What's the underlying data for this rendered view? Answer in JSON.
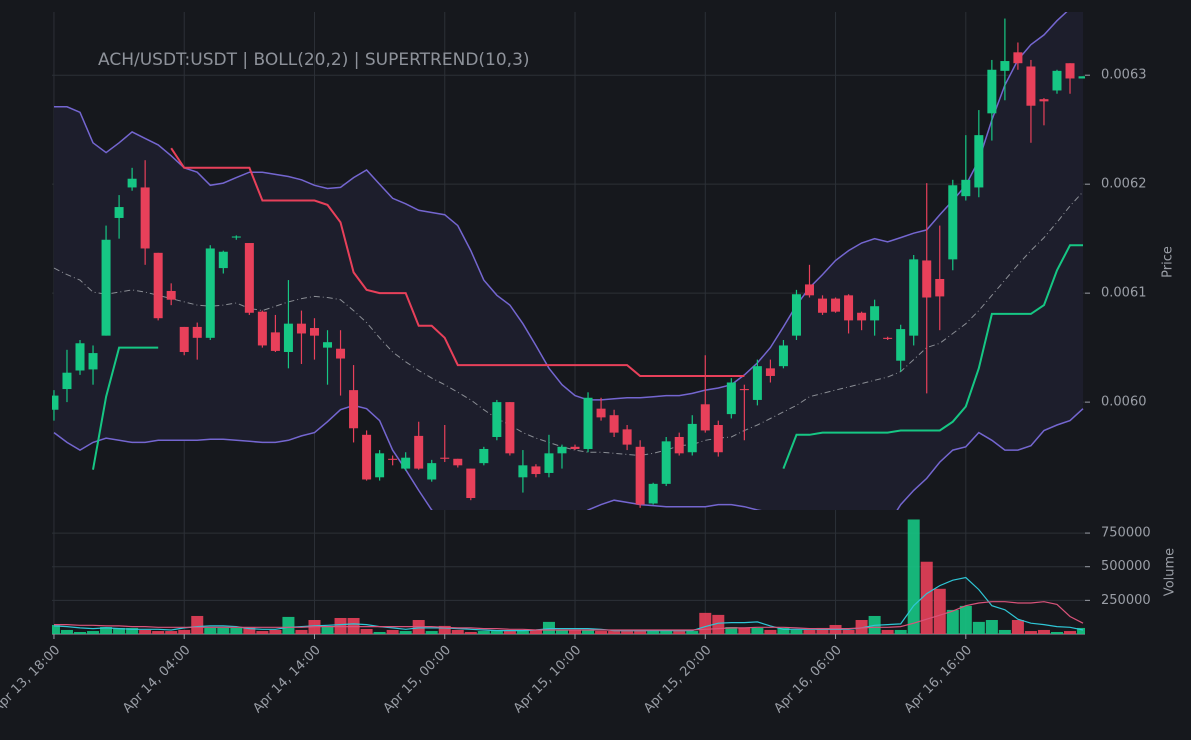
{
  "chart_data": {
    "type": "candlestick",
    "title": "ACH/USDT:USDT | BOLL(20,2) | SUPERTREND(10,3)",
    "y_label": "Price",
    "up_color": "#16c784",
    "down_color": "#e8405a",
    "grid": true,
    "xlim": [
      -0.15,
      79.15
    ],
    "xticks": [
      {
        "value": 0,
        "label": "Apr 13, 18:00"
      },
      {
        "value": 10,
        "label": "Apr 14, 04:00"
      },
      {
        "value": 20,
        "label": "Apr 14, 14:00"
      },
      {
        "value": 30,
        "label": "Apr 15, 00:00"
      },
      {
        "value": 40,
        "label": "Apr 15, 10:00"
      },
      {
        "value": 50,
        "label": "Apr 15, 20:00"
      },
      {
        "value": 60,
        "label": "Apr 16, 06:00"
      },
      {
        "value": 70,
        "label": "Apr 16, 16:00"
      }
    ],
    "ylim": [
      0.005901,
      0.006358
    ],
    "yticks": [
      {
        "value": 0.006,
        "label": "0.0060"
      },
      0.0061,
      0.0062,
      0.0063
    ],
    "open": [
      0.005993,
      0.006012,
      0.006029,
      0.00603,
      0.006061,
      0.006169,
      0.006197,
      0.006197,
      0.006137,
      0.006102,
      0.006069,
      0.006069,
      0.006059,
      0.006123,
      0.006151,
      0.006146,
      0.006083,
      0.006064,
      0.006046,
      0.006072,
      0.006068,
      0.00605,
      0.006049,
      0.006011,
      0.00597,
      0.005931,
      0.005948,
      0.005939,
      0.005969,
      0.005929,
      0.005949,
      0.005948,
      0.005939,
      0.005944,
      0.005968,
      0.006,
      0.005931,
      0.005941,
      0.005935,
      0.005953,
      0.005959,
      0.005957,
      0.005994,
      0.005988,
      0.005975,
      0.005959,
      0.005907,
      0.005925,
      0.005968,
      0.005954,
      0.005998,
      0.005979,
      0.005989,
      0.006012,
      0.006002,
      0.006031,
      0.006033,
      0.006061,
      0.006108,
      0.006095,
      0.006095,
      0.006098,
      0.006082,
      0.006075,
      0.006059,
      0.006038,
      0.006061,
      0.00613,
      0.006113,
      0.006131,
      0.006189,
      0.006197,
      0.006265,
      0.006304,
      0.006321,
      0.006308,
      0.006278,
      0.006286,
      0.006311,
      0.006297
    ],
    "high": [
      0.006011,
      0.006048,
      0.006057,
      0.006052,
      0.006162,
      0.00619,
      0.006215,
      0.006222,
      0.006137,
      0.006109,
      0.006069,
      0.006073,
      0.006144,
      0.006139,
      0.006153,
      0.006146,
      0.006084,
      0.00608,
      0.006112,
      0.006084,
      0.006077,
      0.006066,
      0.006066,
      0.006034,
      0.005974,
      0.005956,
      0.005951,
      0.005954,
      0.005982,
      0.005947,
      0.005979,
      0.005948,
      0.005939,
      0.005959,
      0.006002,
      0.006,
      0.005956,
      0.005943,
      0.00597,
      0.005961,
      0.005961,
      0.006009,
      0.006004,
      0.005993,
      0.005979,
      0.005965,
      0.005926,
      0.005968,
      0.005972,
      0.005988,
      0.006043,
      0.005983,
      0.006022,
      0.006016,
      0.006039,
      0.006039,
      0.006057,
      0.006103,
      0.006126,
      0.006098,
      0.006096,
      0.006099,
      0.006083,
      0.006094,
      0.00606,
      0.006071,
      0.006135,
      0.006201,
      0.006162,
      0.006204,
      0.006245,
      0.006268,
      0.006314,
      0.006352,
      0.00633,
      0.006314,
      0.006279,
      0.006305,
      0.006311,
      0.006299
    ],
    "low": [
      0.005983,
      0.006,
      0.006025,
      0.006016,
      0.006061,
      0.00615,
      0.006194,
      0.006126,
      0.006075,
      0.006089,
      0.006043,
      0.006039,
      0.006057,
      0.006118,
      0.006149,
      0.00608,
      0.00605,
      0.006046,
      0.006031,
      0.006035,
      0.006039,
      0.006016,
      0.006006,
      0.005963,
      0.005928,
      0.005928,
      0.005942,
      0.005937,
      0.005938,
      0.005927,
      0.005945,
      0.00594,
      0.00591,
      0.005942,
      0.005965,
      0.005951,
      0.005917,
      0.005931,
      0.005931,
      0.005939,
      0.005956,
      0.005954,
      0.005983,
      0.005968,
      0.005956,
      0.005903,
      0.005906,
      0.005923,
      0.005951,
      0.005951,
      0.005972,
      0.00595,
      0.005985,
      0.005965,
      0.005997,
      0.006018,
      0.006031,
      0.006057,
      0.006096,
      0.00608,
      0.006082,
      0.006063,
      0.006066,
      0.006061,
      0.006057,
      0.006028,
      0.006052,
      0.006008,
      0.006066,
      0.006121,
      0.006185,
      0.006188,
      0.00624,
      0.006277,
      0.006305,
      0.006238,
      0.006254,
      0.006283,
      0.006283,
      0.006297
    ],
    "close": [
      0.006006,
      0.006027,
      0.006054,
      0.006045,
      0.006149,
      0.006179,
      0.006205,
      0.006141,
      0.006077,
      0.006094,
      0.006046,
      0.006059,
      0.006141,
      0.006138,
      0.006152,
      0.006082,
      0.006052,
      0.006047,
      0.006072,
      0.006063,
      0.006061,
      0.006055,
      0.00604,
      0.005976,
      0.005929,
      0.005953,
      0.005947,
      0.005949,
      0.005939,
      0.005944,
      0.005948,
      0.005942,
      0.005912,
      0.005957,
      0.006,
      0.005953,
      0.005942,
      0.005934,
      0.005953,
      0.005959,
      0.005957,
      0.006004,
      0.005986,
      0.005972,
      0.005961,
      0.005906,
      0.005925,
      0.005964,
      0.005953,
      0.00598,
      0.005974,
      0.005954,
      0.006018,
      0.006011,
      0.006033,
      0.006024,
      0.006052,
      0.006099,
      0.006098,
      0.006082,
      0.006083,
      0.006075,
      0.006075,
      0.006088,
      0.006058,
      0.006067,
      0.006131,
      0.006096,
      0.006097,
      0.006199,
      0.006204,
      0.006245,
      0.006305,
      0.006313,
      0.006311,
      0.006272,
      0.006276,
      0.006304,
      0.006297,
      0.006299
    ],
    "bollinger": {
      "color": "#7466d0",
      "middle_color": "#8a8d94",
      "fill": "#1d1e2c",
      "upper": [
        0.006271,
        0.006271,
        0.006266,
        0.006238,
        0.006229,
        0.006238,
        0.006248,
        0.006242,
        0.006236,
        0.006226,
        0.006215,
        0.006211,
        0.006199,
        0.006201,
        0.006206,
        0.006211,
        0.006211,
        0.006209,
        0.006207,
        0.006204,
        0.006199,
        0.006196,
        0.006197,
        0.006206,
        0.006213,
        0.0062,
        0.006187,
        0.006182,
        0.006176,
        0.006174,
        0.006172,
        0.006162,
        0.006139,
        0.006112,
        0.006098,
        0.006089,
        0.006072,
        0.006052,
        0.006031,
        0.006016,
        0.006006,
        0.006002,
        0.006002,
        0.006003,
        0.006004,
        0.006004,
        0.006005,
        0.006006,
        0.006006,
        0.006008,
        0.006011,
        0.006013,
        0.006016,
        0.006025,
        0.006036,
        0.00605,
        0.006069,
        0.006089,
        0.006105,
        0.006117,
        0.00613,
        0.006139,
        0.006146,
        0.00615,
        0.006147,
        0.006151,
        0.006155,
        0.006158,
        0.006172,
        0.006185,
        0.006199,
        0.006222,
        0.006259,
        0.006291,
        0.006314,
        0.006328,
        0.006337,
        0.00635,
        0.006361,
        0.006369
      ],
      "middle": [
        0.006123,
        0.006117,
        0.006112,
        0.006101,
        0.006099,
        0.006101,
        0.006103,
        0.006101,
        0.006098,
        0.006095,
        0.006092,
        0.006089,
        0.006088,
        0.006089,
        0.006091,
        0.006086,
        0.006084,
        0.006088,
        0.006092,
        0.006095,
        0.006097,
        0.006096,
        0.006094,
        0.006084,
        0.006073,
        0.006059,
        0.006046,
        0.006037,
        0.006029,
        0.006022,
        0.006016,
        0.006009,
        0.006002,
        0.005993,
        0.005985,
        0.005979,
        0.005972,
        0.005967,
        0.005963,
        0.005959,
        0.005956,
        0.005954,
        0.005954,
        0.005953,
        0.005952,
        0.005951,
        0.005953,
        0.005956,
        0.00596,
        0.005961,
        0.005965,
        0.005967,
        0.005968,
        0.005974,
        0.005979,
        0.005985,
        0.005991,
        0.005997,
        0.006005,
        0.006008,
        0.006011,
        0.006014,
        0.006017,
        0.00602,
        0.006023,
        0.006028,
        0.006039,
        0.00605,
        0.006054,
        0.006063,
        0.006072,
        0.006084,
        0.006098,
        0.006112,
        0.006126,
        0.006139,
        0.006151,
        0.006165,
        0.00618,
        0.006193
      ],
      "lower": [
        0.005972,
        0.005963,
        0.005956,
        0.005963,
        0.005967,
        0.005965,
        0.005963,
        0.005963,
        0.005965,
        0.005965,
        0.005965,
        0.005965,
        0.005966,
        0.005966,
        0.005965,
        0.005964,
        0.005963,
        0.005963,
        0.005965,
        0.005969,
        0.005972,
        0.005982,
        0.005993,
        0.005997,
        0.005994,
        0.005983,
        0.005956,
        0.005938,
        0.005919,
        0.005901,
        0.005892,
        0.005883,
        0.005873,
        0.005869,
        0.005864,
        0.00586,
        0.00586,
        0.005855,
        0.005855,
        0.005869,
        0.005892,
        0.005901,
        0.005906,
        0.00591,
        0.005908,
        0.005906,
        0.005905,
        0.005904,
        0.005904,
        0.005904,
        0.005904,
        0.005906,
        0.005906,
        0.005904,
        0.005901,
        0.005899,
        0.005892,
        0.005883,
        0.005873,
        0.005869,
        0.005869,
        0.005873,
        0.005878,
        0.005883,
        0.005887,
        0.005906,
        0.005919,
        0.00593,
        0.005945,
        0.005956,
        0.005959,
        0.005972,
        0.005965,
        0.005956,
        0.005956,
        0.00596,
        0.005974,
        0.005979,
        0.005983,
        0.005994
      ]
    },
    "supertrend": {
      "up_values": [
        null,
        null,
        null,
        0.005938,
        0.006005,
        0.00605,
        0.00605,
        0.00605,
        0.00605,
        null,
        null,
        null,
        null,
        null,
        null,
        null,
        null,
        null,
        null,
        null,
        null,
        null,
        null,
        null,
        null,
        null,
        null,
        null,
        null,
        null,
        null,
        null,
        null,
        null,
        null,
        null,
        null,
        null,
        null,
        null,
        null,
        null,
        null,
        null,
        null,
        null,
        null,
        null,
        null,
        null,
        null,
        null,
        null,
        null,
        null,
        null,
        0.005939,
        0.00597,
        0.00597,
        0.005972,
        0.005972,
        0.005972,
        0.005972,
        0.005972,
        0.005972,
        0.005974,
        0.005974,
        0.005974,
        0.005974,
        0.005982,
        0.005996,
        0.006031,
        0.006081,
        0.006081,
        0.006081,
        0.006081,
        0.006089,
        0.006121,
        0.006144,
        0.006144
      ],
      "down_values": [
        null,
        null,
        null,
        null,
        null,
        null,
        null,
        null,
        null,
        0.006233,
        0.006215,
        0.006215,
        0.006215,
        0.006215,
        0.006215,
        0.006215,
        0.006185,
        0.006185,
        0.006185,
        0.006185,
        0.006185,
        0.006181,
        0.006165,
        0.006119,
        0.006103,
        0.0061,
        0.0061,
        0.0061,
        0.00607,
        0.00607,
        0.006059,
        0.006034,
        0.006034,
        0.006034,
        0.006034,
        0.006034,
        0.006034,
        0.006034,
        0.006034,
        0.006034,
        0.006034,
        0.006034,
        0.006034,
        0.006034,
        0.006034,
        0.006024,
        0.006024,
        0.006024,
        0.006024,
        0.006024,
        0.006024,
        0.006024,
        0.006024,
        0.006024,
        null,
        null,
        null,
        null,
        null,
        null,
        null,
        null,
        null,
        null,
        null,
        null,
        null,
        null,
        null,
        null,
        null,
        null,
        null,
        null,
        null,
        null,
        null,
        null,
        null,
        null
      ]
    },
    "volume": {
      "y_label": "Volume",
      "ylim": [
        0,
        862000
      ],
      "yticks": [
        250000,
        500000,
        750000
      ],
      "values": [
        67000,
        30000,
        15000,
        22000,
        52000,
        45000,
        45000,
        30000,
        22000,
        22000,
        30000,
        134000,
        45000,
        45000,
        45000,
        52000,
        22000,
        30000,
        127000,
        30000,
        104000,
        52000,
        119000,
        119000,
        37000,
        15000,
        30000,
        22000,
        104000,
        22000,
        60000,
        30000,
        15000,
        22000,
        22000,
        22000,
        30000,
        30000,
        90000,
        30000,
        30000,
        30000,
        22000,
        22000,
        22000,
        30000,
        22000,
        22000,
        22000,
        22000,
        157000,
        142000,
        52000,
        45000,
        45000,
        30000,
        45000,
        30000,
        30000,
        45000,
        67000,
        30000,
        104000,
        134000,
        30000,
        30000,
        851000,
        537000,
        336000,
        179000,
        209000,
        90000,
        104000,
        30000,
        104000,
        22000,
        30000,
        15000,
        22000,
        45000
      ],
      "ma_fast": {
        "color": "#2fc6d6",
        "values": [
          60000,
          55000,
          45000,
          40000,
          45000,
          40000,
          35000,
          35000,
          35000,
          30000,
          45000,
          55000,
          60000,
          60000,
          55000,
          40000,
          35000,
          35000,
          50000,
          55000,
          60000,
          65000,
          70000,
          75000,
          70000,
          55000,
          45000,
          35000,
          45000,
          45000,
          45000,
          40000,
          35000,
          30000,
          25000,
          25000,
          25000,
          30000,
          40000,
          40000,
          40000,
          40000,
          35000,
          25000,
          25000,
          25000,
          25000,
          25000,
          25000,
          25000,
          55000,
          80000,
          85000,
          85000,
          90000,
          60000,
          35000,
          35000,
          35000,
          35000,
          35000,
          35000,
          45000,
          65000,
          70000,
          75000,
          210000,
          300000,
          360000,
          400000,
          420000,
          330000,
          210000,
          180000,
          110000,
          80000,
          70000,
          55000,
          50000,
          30000
        ]
      },
      "ma_slow": {
        "color": "#d9537a",
        "values": [
          70000,
          70000,
          65000,
          65000,
          60000,
          60000,
          55000,
          55000,
          50000,
          50000,
          50000,
          50000,
          50000,
          50000,
          50000,
          50000,
          50000,
          50000,
          50000,
          50000,
          55000,
          55000,
          55000,
          55000,
          55000,
          55000,
          55000,
          55000,
          55000,
          55000,
          50000,
          45000,
          45000,
          40000,
          40000,
          35000,
          35000,
          30000,
          30000,
          30000,
          30000,
          30000,
          30000,
          30000,
          30000,
          30000,
          30000,
          30000,
          30000,
          30000,
          35000,
          40000,
          45000,
          45000,
          50000,
          50000,
          50000,
          45000,
          40000,
          40000,
          40000,
          40000,
          45000,
          50000,
          50000,
          55000,
          80000,
          110000,
          140000,
          170000,
          210000,
          230000,
          240000,
          240000,
          230000,
          230000,
          240000,
          220000,
          130000,
          80000
        ]
      }
    }
  }
}
